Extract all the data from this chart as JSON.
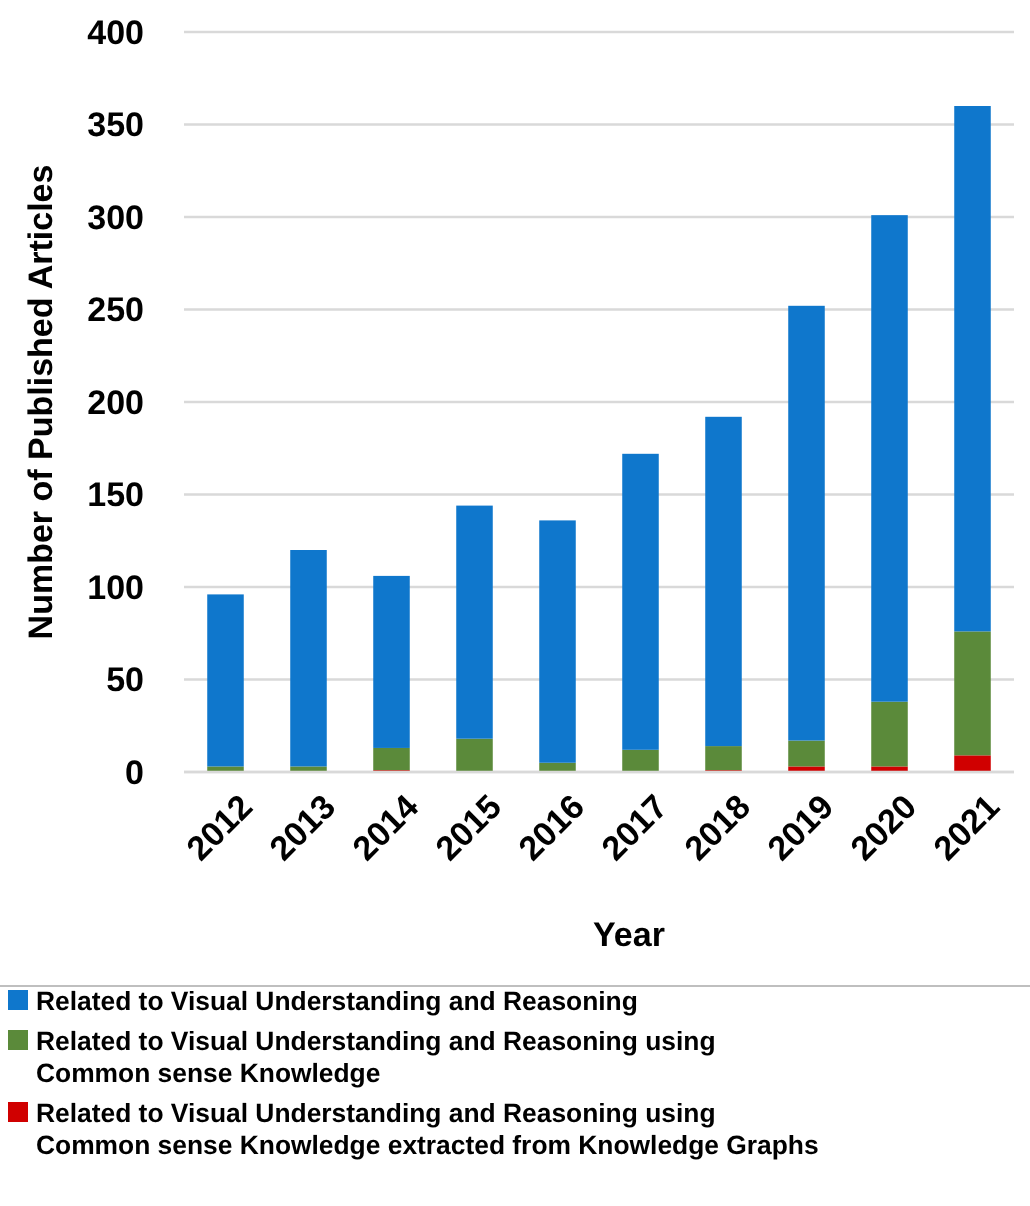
{
  "chart_data": {
    "type": "bar",
    "xlabel": "Year",
    "ylabel": "Number of Published Articles",
    "categories": [
      "2012",
      "2013",
      "2014",
      "2015",
      "2016",
      "2017",
      "2018",
      "2019",
      "2020",
      "2021"
    ],
    "stacked": true,
    "ylim": [
      0,
      400
    ],
    "yticks": [
      0,
      50,
      100,
      150,
      200,
      250,
      300,
      350,
      400
    ],
    "grid": "y",
    "legend": "bottom",
    "series": [
      {
        "name": "Related to Visual Understanding and Reasoning using Common sense Knowledge extracted from Knowledge Graphs",
        "color": "#d00000",
        "values": [
          0,
          0,
          1,
          0,
          0,
          0,
          1,
          3,
          3,
          9
        ]
      },
      {
        "name": "Related to Visual Understanding and Reasoning using Common sense Knowledge",
        "color": "#5b8a3a",
        "values": [
          3,
          3,
          12,
          18,
          5,
          12,
          13,
          14,
          35,
          67
        ]
      },
      {
        "name": "Related to Visual Understanding and Reasoning",
        "color": "#0f77cc",
        "values": [
          93,
          117,
          93,
          126,
          131,
          160,
          178,
          235,
          263,
          284
        ]
      }
    ]
  }
}
